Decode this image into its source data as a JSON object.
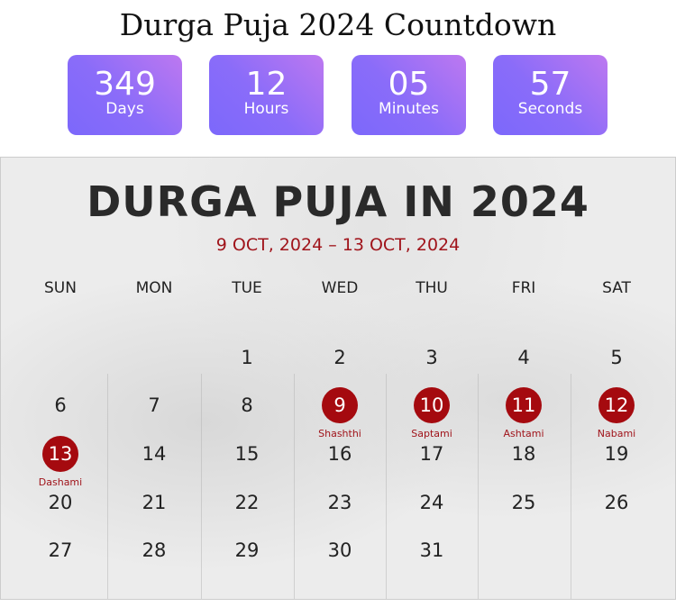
{
  "title": "Durga Puja 2024 Countdown",
  "countdown": [
    {
      "value": "349",
      "label": "Days"
    },
    {
      "value": "12",
      "label": "Hours"
    },
    {
      "value": "05",
      "label": "Minutes"
    },
    {
      "value": "57",
      "label": "Seconds"
    }
  ],
  "calendar": {
    "heading": "DURGA PUJA IN 2024",
    "range": "9 OCT, 2024 – 13 OCT, 2024",
    "weekdays": [
      "SUN",
      "MON",
      "TUE",
      "WED",
      "THU",
      "FRI",
      "SAT"
    ],
    "weeks": [
      [
        "",
        "",
        "1",
        "2",
        "3",
        "4",
        "5"
      ],
      [
        "6",
        "7",
        "8",
        "9",
        "10",
        "11",
        "12"
      ],
      [
        "13",
        "14",
        "15",
        "16",
        "17",
        "18",
        "19"
      ],
      [
        "20",
        "21",
        "22",
        "23",
        "24",
        "25",
        "26"
      ],
      [
        "27",
        "28",
        "29",
        "30",
        "31",
        "",
        ""
      ]
    ],
    "festivals": {
      "9": "Shashthi",
      "10": "Saptami",
      "11": "Ashtami",
      "12": "Nabami",
      "13": "Dashami"
    },
    "highlight_color": "#a50a0f"
  }
}
